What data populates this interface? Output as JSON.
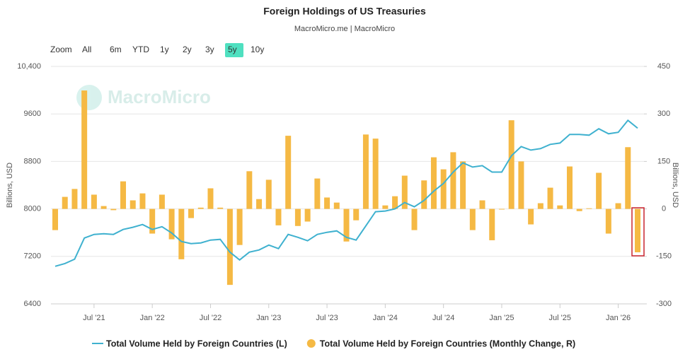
{
  "chart_data": {
    "type": "line_bar",
    "title": "Foreign Holdings of US Treasuries",
    "subtitle": "MacroMicro.me | MacroMicro",
    "watermark": "MacroMicro",
    "range_selector": {
      "label": "Zoom",
      "buttons": [
        "All",
        "6m",
        "YTD",
        "1y",
        "2y",
        "3y",
        "5y",
        "10y"
      ],
      "active_button": 6
    },
    "y_label": "Billions, USD",
    "y2_label": "Billions, USD",
    "categories": [
      null,
      null,
      null,
      null,
      "Jul '21",
      null,
      null,
      null,
      null,
      null,
      "Jan '22",
      null,
      null,
      null,
      null,
      null,
      "Jul '22",
      null,
      null,
      null,
      null,
      null,
      "Jan '23",
      null,
      null,
      null,
      null,
      null,
      "Jul '23",
      null,
      null,
      null,
      null,
      null,
      "Jan '24",
      null,
      null,
      null,
      null,
      null,
      "Jul '24",
      null,
      null,
      null,
      null,
      null,
      "Jan '25",
      null,
      null,
      null,
      null,
      null,
      "Jul '25",
      null,
      null,
      null,
      null,
      null,
      "Jan '26",
      null,
      null
    ],
    "ylim": [
      6400,
      10400
    ],
    "yticks": [
      6400,
      7200,
      8000,
      8800,
      9600,
      {
        "value": 10400,
        "label": "10,400"
      }
    ],
    "y2lim": [
      -300,
      450
    ],
    "y2ticks": [
      -300,
      -150,
      0,
      150,
      300,
      450
    ],
    "grid": true,
    "series": [
      {
        "name": "Total Volume Held by Foreign Countries (L)",
        "type": "line",
        "color": "#3fb1cf",
        "values": [
          7033,
          7080,
          7152,
          7510,
          7570,
          7582,
          7570,
          7654,
          7690,
          7737,
          7654,
          7700,
          7594,
          7451,
          7415,
          7427,
          7475,
          7487,
          7272,
          7140,
          7272,
          7308,
          7391,
          7331,
          7570,
          7522,
          7463,
          7570,
          7606,
          7630,
          7522,
          7475,
          7713,
          7952,
          7964,
          8000,
          8107,
          8036,
          8143,
          8300,
          8430,
          8620,
          8776,
          8705,
          8728,
          8620,
          8620,
          8895,
          9050,
          8990,
          9015,
          9087,
          9110,
          9254,
          9254,
          9242,
          9350,
          9266,
          9290,
          9492,
          9360
        ]
      },
      {
        "name": "Total Volume Held by Foreign Countries (Monthly Change, R)",
        "type": "bar",
        "axis": "y2",
        "color": "#f5b944",
        "values": [
          -67,
          38,
          63,
          374,
          45,
          9,
          -4,
          87,
          27,
          49,
          -78,
          45,
          -96,
          -159,
          -29,
          4,
          65,
          4,
          -240,
          -114,
          119,
          31,
          92,
          -52,
          231,
          -54,
          -40,
          96,
          36,
          20,
          -103,
          -36,
          235,
          222,
          11,
          40,
          105,
          -67,
          90,
          163,
          125,
          179,
          150,
          -67,
          27,
          -99,
          -2,
          280,
          150,
          -49,
          18,
          67,
          11,
          134,
          -7,
          2,
          114,
          -78,
          18,
          195,
          -137
        ]
      }
    ]
  }
}
